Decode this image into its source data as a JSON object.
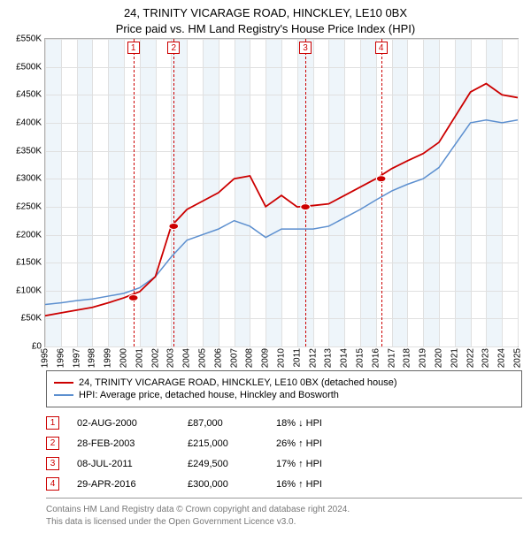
{
  "header": {
    "line1": "24, TRINITY VICARAGE ROAD, HINCKLEY, LE10 0BX",
    "line2": "Price paid vs. HM Land Registry's House Price Index (HPI)"
  },
  "chart": {
    "type": "line",
    "x_axis": {
      "min": 1995,
      "max": 2025,
      "ticks": [
        1995,
        1996,
        1997,
        1998,
        1999,
        2000,
        2001,
        2002,
        2003,
        2004,
        2005,
        2006,
        2007,
        2008,
        2009,
        2010,
        2011,
        2012,
        2013,
        2014,
        2015,
        2016,
        2017,
        2018,
        2019,
        2020,
        2021,
        2022,
        2023,
        2024,
        2025
      ]
    },
    "y_axis": {
      "min": 0,
      "max": 550000,
      "tick_step": 50000,
      "tick_labels": [
        "£0",
        "£50K",
        "£100K",
        "£150K",
        "£200K",
        "£250K",
        "£300K",
        "£350K",
        "£400K",
        "£450K",
        "£500K",
        "£550K"
      ]
    },
    "grid_color": "#e0e0e0",
    "shaded_bands_color": "#eaf2f9",
    "shaded_years": [
      1995,
      1997,
      1999,
      2001,
      2003,
      2005,
      2007,
      2009,
      2011,
      2013,
      2015,
      2017,
      2019,
      2021,
      2023
    ],
    "series": [
      {
        "id": "hpi",
        "label": "HPI: Average price, detached house, Hinckley and Bosworth",
        "color": "#5c8fcf",
        "width": 1.5,
        "points": [
          [
            1995,
            75000
          ],
          [
            1996,
            78000
          ],
          [
            1997,
            82000
          ],
          [
            1998,
            85000
          ],
          [
            1999,
            90000
          ],
          [
            2000,
            95000
          ],
          [
            2001,
            105000
          ],
          [
            2002,
            125000
          ],
          [
            2003,
            160000
          ],
          [
            2004,
            190000
          ],
          [
            2005,
            200000
          ],
          [
            2006,
            210000
          ],
          [
            2007,
            225000
          ],
          [
            2008,
            215000
          ],
          [
            2009,
            195000
          ],
          [
            2010,
            210000
          ],
          [
            2011,
            210000
          ],
          [
            2012,
            210000
          ],
          [
            2013,
            215000
          ],
          [
            2014,
            230000
          ],
          [
            2015,
            245000
          ],
          [
            2016,
            262000
          ],
          [
            2017,
            278000
          ],
          [
            2018,
            290000
          ],
          [
            2019,
            300000
          ],
          [
            2020,
            320000
          ],
          [
            2021,
            360000
          ],
          [
            2022,
            400000
          ],
          [
            2023,
            405000
          ],
          [
            2024,
            400000
          ],
          [
            2025,
            405000
          ]
        ]
      },
      {
        "id": "price",
        "label": "24, TRINITY VICARAGE ROAD, HINCKLEY, LE10 0BX (detached house)",
        "color": "#cc0000",
        "width": 1.8,
        "points": [
          [
            1995,
            55000
          ],
          [
            1996,
            60000
          ],
          [
            1997,
            65000
          ],
          [
            1998,
            70000
          ],
          [
            1999,
            78000
          ],
          [
            2000,
            87000
          ],
          [
            2001,
            98000
          ],
          [
            2002,
            125000
          ],
          [
            2003,
            215000
          ],
          [
            2004,
            245000
          ],
          [
            2005,
            260000
          ],
          [
            2006,
            275000
          ],
          [
            2007,
            300000
          ],
          [
            2008,
            305000
          ],
          [
            2009,
            250000
          ],
          [
            2010,
            270000
          ],
          [
            2011,
            249500
          ],
          [
            2012,
            252000
          ],
          [
            2013,
            255000
          ],
          [
            2014,
            270000
          ],
          [
            2015,
            285000
          ],
          [
            2016,
            300000
          ],
          [
            2017,
            318000
          ],
          [
            2018,
            332000
          ],
          [
            2019,
            345000
          ],
          [
            2020,
            365000
          ],
          [
            2021,
            410000
          ],
          [
            2022,
            455000
          ],
          [
            2023,
            470000
          ],
          [
            2024,
            450000
          ],
          [
            2025,
            445000
          ]
        ]
      }
    ],
    "events": [
      {
        "n": "1",
        "year": 2000.6,
        "y": 87000,
        "date": "02-AUG-2000",
        "price": "£87,000",
        "pct": "18% ↓ HPI"
      },
      {
        "n": "2",
        "year": 2003.16,
        "y": 215000,
        "date": "28-FEB-2003",
        "price": "£215,000",
        "pct": "26% ↑ HPI"
      },
      {
        "n": "3",
        "year": 2011.52,
        "y": 249500,
        "date": "08-JUL-2011",
        "price": "£249,500",
        "pct": "17% ↑ HPI"
      },
      {
        "n": "4",
        "year": 2016.33,
        "y": 300000,
        "date": "29-APR-2016",
        "price": "£300,000",
        "pct": "16% ↑ HPI"
      }
    ],
    "event_line_color": "#cc0000",
    "marker_radius": 4
  },
  "legend": {
    "rows": [
      {
        "id": "price",
        "color": "#cc0000"
      },
      {
        "id": "hpi",
        "color": "#5c8fcf"
      }
    ]
  },
  "footer": {
    "line1": "Contains HM Land Registry data © Crown copyright and database right 2024.",
    "line2": "This data is licensed under the Open Government Licence v3.0."
  }
}
